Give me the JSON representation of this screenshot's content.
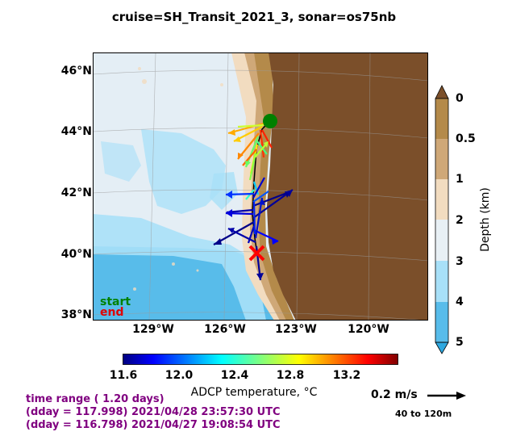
{
  "title": "cruise=SH_Transit_2021_3,   sonar=os75nb",
  "map": {
    "lat_labels": [
      "46°N",
      "44°N",
      "42°N",
      "40°N",
      "38°N"
    ],
    "lon_labels": [
      "129°W",
      "126°W",
      "123°W",
      "120°W"
    ],
    "legend_start": "start",
    "legend_end": "end",
    "start_color": "#008000",
    "end_color": "#ff0000",
    "land_color": "#7b4f2a"
  },
  "depth_colorbar": {
    "ticks": [
      "0",
      "0.5",
      "1",
      "2",
      "3",
      "4",
      "5"
    ],
    "label": "Depth (km)",
    "colors": [
      "#b48a4a",
      "#cfa878",
      "#f2dcc0",
      "#e8f0f5",
      "#a8e0f8",
      "#58bcea",
      "#2ea8e0"
    ]
  },
  "temp_colorbar": {
    "ticks": [
      "11.6",
      "12.0",
      "12.4",
      "12.8",
      "13.2"
    ],
    "label": "ADCP temperature, °C",
    "colormap": "jet"
  },
  "info": {
    "line1": "time range ( 1.20 days)",
    "line2": "(dday = 117.998) 2021/04/28 23:57:30 UTC",
    "line3": "(dday = 116.798) 2021/04/27 19:08:54 UTC"
  },
  "scale": {
    "value": "0.2 m/s",
    "depth_range": "40 to 120m"
  }
}
